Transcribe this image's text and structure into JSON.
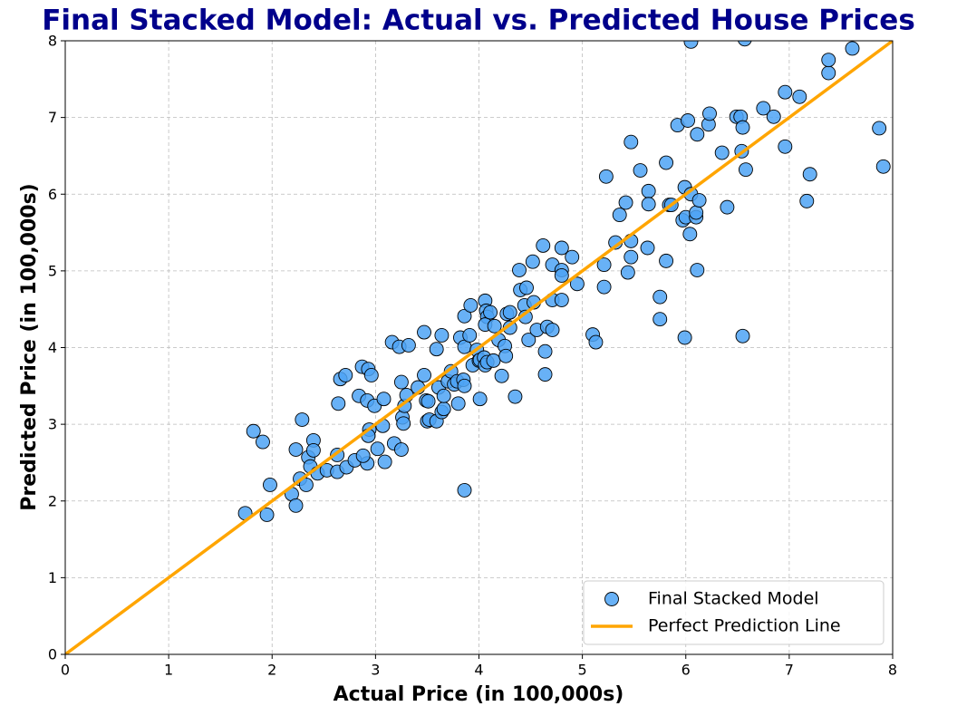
{
  "chart_data": {
    "type": "scatter",
    "title": "Final Stacked Model: Actual vs. Predicted House Prices",
    "xlabel": "Actual Price (in 100,000s)",
    "ylabel": "Predicted Price (in 100,000s)",
    "xlim": [
      0,
      8
    ],
    "ylim": [
      0,
      8
    ],
    "xticks": [
      0,
      1,
      2,
      3,
      4,
      5,
      6,
      7,
      8
    ],
    "yticks": [
      0,
      1,
      2,
      3,
      4,
      5,
      6,
      7,
      8
    ],
    "grid": true,
    "legend": "lower right",
    "series": [
      {
        "name": "Final Stacked Model",
        "color": "#4da3f5",
        "x": [
          1.74,
          1.95,
          1.82,
          1.91,
          1.98,
          2.29,
          2.23,
          2.19,
          2.23,
          2.27,
          2.35,
          2.4,
          2.4,
          2.33,
          2.37,
          2.44,
          2.53,
          2.63,
          2.64,
          2.66,
          2.71,
          2.63,
          2.72,
          2.8,
          2.84,
          2.87,
          2.93,
          2.96,
          2.92,
          2.94,
          2.93,
          2.92,
          2.88,
          2.99,
          3.02,
          3.07,
          3.08,
          3.09,
          3.16,
          3.23,
          3.18,
          3.25,
          3.25,
          3.26,
          3.28,
          3.27,
          3.3,
          3.32,
          3.41,
          3.47,
          3.47,
          3.49,
          3.5,
          3.52,
          3.51,
          3.59,
          3.59,
          3.61,
          3.64,
          3.64,
          3.66,
          3.66,
          3.7,
          3.73,
          3.76,
          3.79,
          3.8,
          3.82,
          3.86,
          3.86,
          3.86,
          3.85,
          3.86,
          3.92,
          3.91,
          3.94,
          3.98,
          4.0,
          4.01,
          4.01,
          4.05,
          4.06,
          4.07,
          4.08,
          4.06,
          4.06,
          4.08,
          4.11,
          4.15,
          4.14,
          4.19,
          4.22,
          4.25,
          4.26,
          4.27,
          4.3,
          4.3,
          4.35,
          4.39,
          4.4,
          4.44,
          4.46,
          4.45,
          4.48,
          4.52,
          4.53,
          4.56,
          4.62,
          4.64,
          4.64,
          4.66,
          4.71,
          4.71,
          4.71,
          4.8,
          4.8,
          4.8,
          4.8,
          4.9,
          4.95,
          5.1,
          5.13,
          5.21,
          5.21,
          5.23,
          5.32,
          5.36,
          5.42,
          5.44,
          5.47,
          5.47,
          5.47,
          5.56,
          5.63,
          5.64,
          5.64,
          5.75,
          5.75,
          5.81,
          5.81,
          5.84,
          5.86,
          5.92,
          5.97,
          5.99,
          5.99,
          6.0,
          6.02,
          6.05,
          6.04,
          6.05,
          6.1,
          6.11,
          6.11,
          6.1,
          6.13,
          6.22,
          6.23,
          6.35,
          6.4,
          6.49,
          6.53,
          6.54,
          6.55,
          6.55,
          6.58,
          6.57,
          6.75,
          6.85,
          6.96,
          6.96,
          7.1,
          7.17,
          7.2,
          7.38,
          7.38,
          7.61,
          7.87,
          7.91
        ],
        "y": [
          1.84,
          1.82,
          2.91,
          2.77,
          2.21,
          3.06,
          2.67,
          2.09,
          1.94,
          2.29,
          2.57,
          2.79,
          2.66,
          2.21,
          2.45,
          2.36,
          2.4,
          2.6,
          3.27,
          3.59,
          3.64,
          2.38,
          2.44,
          2.53,
          3.37,
          3.75,
          3.72,
          3.64,
          3.31,
          2.93,
          2.85,
          2.49,
          2.59,
          3.24,
          2.68,
          2.98,
          3.33,
          2.51,
          4.07,
          4.01,
          2.75,
          2.67,
          3.55,
          3.09,
          3.24,
          3.01,
          3.38,
          4.03,
          3.48,
          4.2,
          3.64,
          3.31,
          3.04,
          3.06,
          3.3,
          3.04,
          3.98,
          3.48,
          4.16,
          3.16,
          3.2,
          3.37,
          3.56,
          3.69,
          3.52,
          3.56,
          3.27,
          4.13,
          4.41,
          4.01,
          2.14,
          3.58,
          3.5,
          4.55,
          4.16,
          3.77,
          3.97,
          3.83,
          3.33,
          3.84,
          3.87,
          4.61,
          4.48,
          4.4,
          4.3,
          3.77,
          3.81,
          4.46,
          4.28,
          3.83,
          4.1,
          3.63,
          4.02,
          3.89,
          4.44,
          4.46,
          4.26,
          3.36,
          5.01,
          4.75,
          4.55,
          4.78,
          4.4,
          4.1,
          5.12,
          4.59,
          4.23,
          5.33,
          3.95,
          3.65,
          4.27,
          5.08,
          4.62,
          4.23,
          5.3,
          5.01,
          4.94,
          4.62,
          5.18,
          4.83,
          4.17,
          4.07,
          5.08,
          4.79,
          6.23,
          5.37,
          5.73,
          5.89,
          4.98,
          6.68,
          5.39,
          5.18,
          6.31,
          5.3,
          6.04,
          5.87,
          4.66,
          4.37,
          6.41,
          5.13,
          5.86,
          5.86,
          6.9,
          5.66,
          6.09,
          4.13,
          5.7,
          6.96,
          6.0,
          5.48,
          7.99,
          5.7,
          6.78,
          5.01,
          5.76,
          5.92,
          6.91,
          7.05,
          6.54,
          5.83,
          7.01,
          7.01,
          6.56,
          6.87,
          4.15,
          6.32,
          8.02,
          7.12,
          7.01,
          7.33,
          6.62,
          7.27,
          5.91,
          6.26,
          7.58,
          7.75,
          7.9,
          6.86,
          6.36
        ]
      }
    ],
    "reference_line": {
      "name": "Perfect Prediction Line",
      "color": "#ffa500",
      "x": [
        0,
        8
      ],
      "y": [
        0,
        8
      ]
    }
  }
}
